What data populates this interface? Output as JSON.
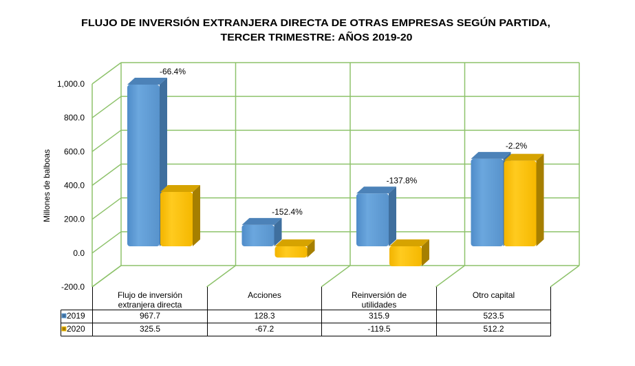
{
  "chart_data": {
    "type": "bar",
    "style": "3d-clustered-column-with-data-table",
    "title": "FLUJO DE INVERSIÓN EXTRANJERA DIRECTA DE OTRAS EMPRESAS SEGÚN PARTIDA, TERCER TRIMESTRE: AÑOS 2019-20",
    "title_lines": [
      "FLUJO DE INVERSIÓN EXTRANJERA DIRECTA DE OTRAS EMPRESAS SEGÚN PARTIDA,",
      "TERCER TRIMESTRE: AÑOS 2019-20"
    ],
    "xlabel": "",
    "ylabel": "Millones de balboas",
    "ylim": [
      -200,
      1000
    ],
    "yticks": [
      -200,
      0,
      200,
      400,
      600,
      800,
      1000
    ],
    "ytick_labels": [
      "-200.0",
      "0.0",
      "200.0",
      "400.0",
      "600.0",
      "800.0",
      "1,000.0"
    ],
    "grid": true,
    "legend": "data-table-left",
    "categories": [
      "Flujo de inversión extranjera directa",
      "Acciones",
      "Reinversión de utilidades",
      "Otro capital"
    ],
    "category_lines": [
      [
        "Flujo de inversión",
        "extranjera directa"
      ],
      [
        "Acciones"
      ],
      [
        "Reinversión de",
        "utilidades"
      ],
      [
        "Otro capital"
      ]
    ],
    "series": [
      {
        "name": "2019",
        "values": [
          967.7,
          128.3,
          315.9,
          523.5
        ],
        "value_labels": [
          "967.7",
          "128.3",
          "315.9",
          "523.5"
        ],
        "color": "#5B9BD5",
        "side_color": "#3F6F9E",
        "top_color": "#4C82B8"
      },
      {
        "name": "2020",
        "values": [
          325.5,
          -67.2,
          -119.5,
          512.2
        ],
        "value_labels": [
          "325.5",
          "-67.2",
          "-119.5",
          "512.2"
        ],
        "color": "#FFC000",
        "side_color": "#A67F00",
        "top_color": "#D6A300"
      }
    ],
    "annotations": [
      "-66.4%",
      "-152.4%",
      "-137.8%",
      "-2.2%"
    ],
    "grid_color": "#8DC26A"
  }
}
